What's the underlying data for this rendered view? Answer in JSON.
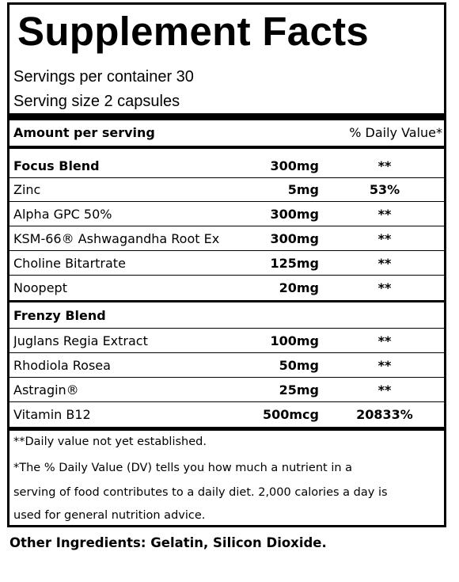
{
  "label": {
    "title": "Supplement Facts",
    "servings_per_container": "Servings per container 30",
    "serving_size": "Serving size 2 capsules",
    "amount_header": "Amount per serving",
    "dv_header": "% Daily Value*",
    "rows": [
      {
        "name": "Focus Blend",
        "amount": "300mg",
        "dv": "**"
      },
      {
        "name": "Zinc",
        "amount": "5mg",
        "dv": "53%"
      },
      {
        "name": "Alpha GPC 50%",
        "amount": "300mg",
        "dv": "**"
      },
      {
        "name": "KSM-66® Ashwagandha Root Ex",
        "amount": "300mg",
        "dv": "**"
      },
      {
        "name": "Choline Bitartrate",
        "amount": "125mg",
        "dv": "**"
      },
      {
        "name": "Noopept",
        "amount": "20mg",
        "dv": "**"
      },
      {
        "name": "Frenzy Blend",
        "amount": "",
        "dv": ""
      },
      {
        "name": "Juglans Regia Extract",
        "amount": "100mg",
        "dv": "**"
      },
      {
        "name": "Rhodiola Rosea",
        "amount": "50mg",
        "dv": "**"
      },
      {
        "name": "Astragin®",
        "amount": "25mg",
        "dv": "**"
      },
      {
        "name": "Vitamin B12",
        "amount": "500mcg",
        "dv": "20833%"
      }
    ],
    "footnote_1": "**Daily value not yet established.",
    "footnote_2_line1": "*The % Daily Value (DV) tells you how much a nutrient in a",
    "footnote_2_line2": "serving of food contributes to a daily diet. 2,000 calories a day is",
    "footnote_2_line3": "used for general nutrition advice."
  },
  "other_ingredients": "Other Ingredients: Gelatin, Silicon Dioxide."
}
